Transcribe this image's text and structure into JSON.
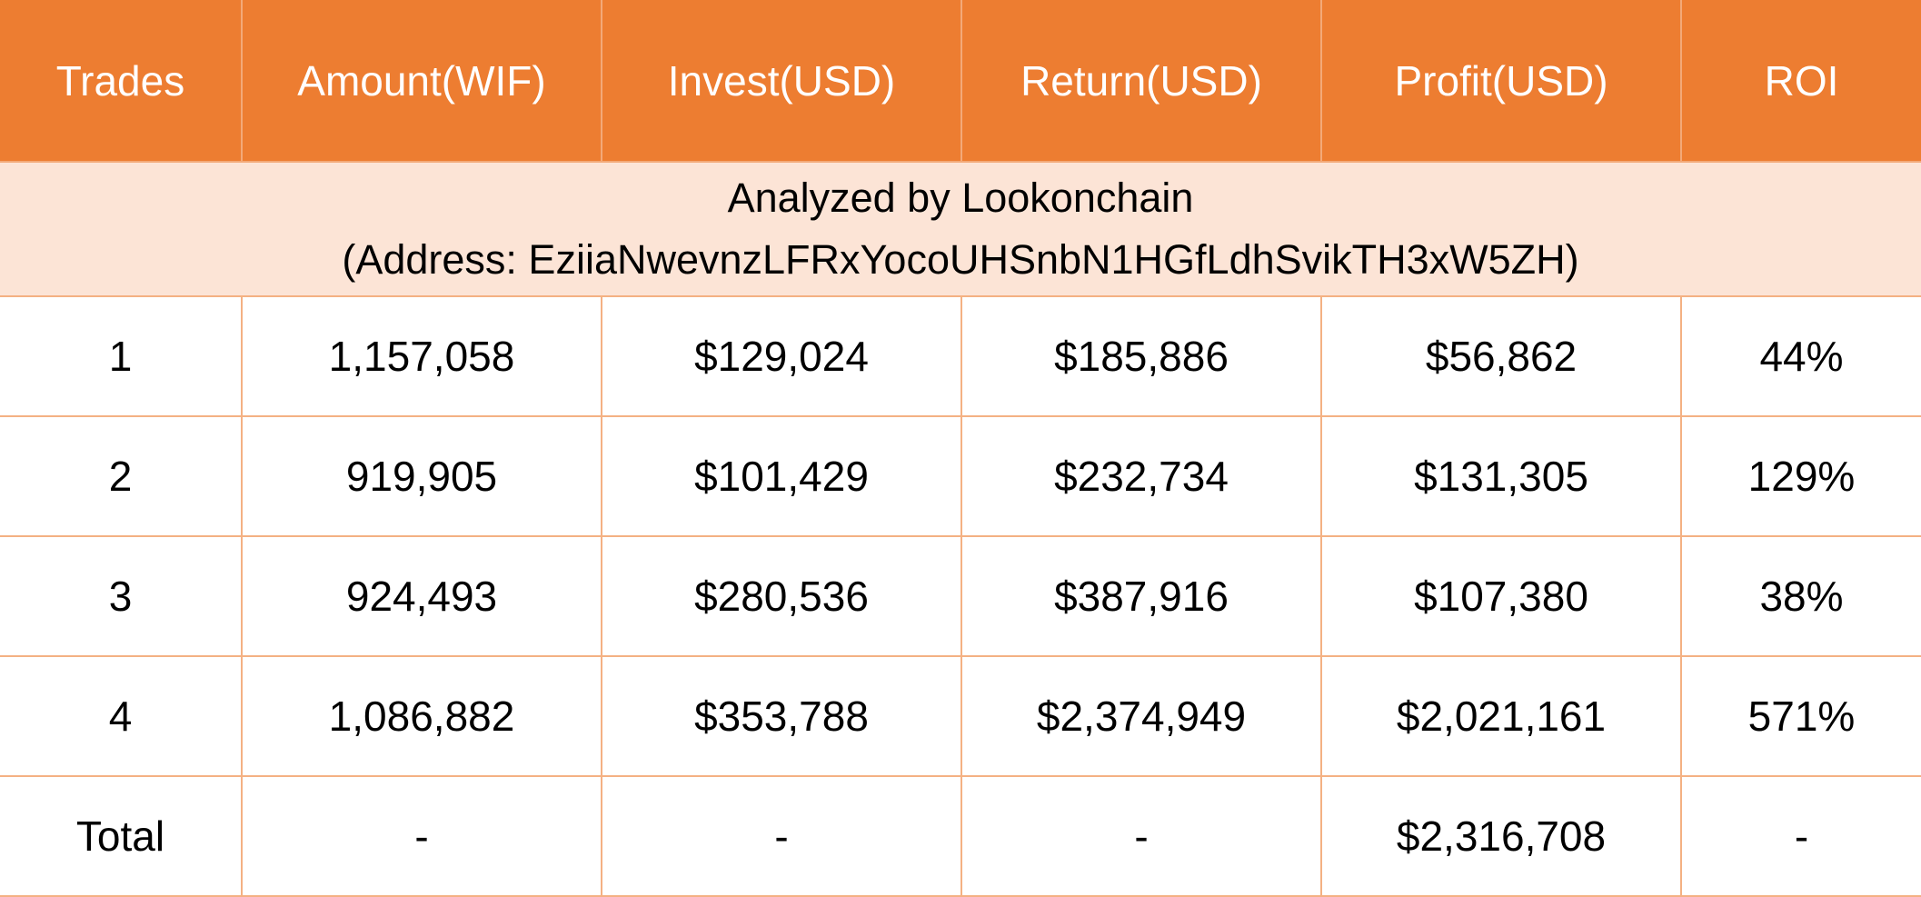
{
  "table": {
    "headers": [
      "Trades",
      "Amount(WIF)",
      "Invest(USD)",
      "Return(USD)",
      "Profit(USD)",
      "ROI"
    ],
    "banner": {
      "line1": "Analyzed by Lookonchain",
      "line2": "(Address: EziiaNwevnzLFRxYocoUHSnbN1HGfLdhSvikTH3xW5ZH)"
    },
    "rows": [
      [
        "1",
        "1,157,058",
        "$129,024",
        "$185,886",
        "$56,862",
        "44%"
      ],
      [
        "2",
        "919,905",
        "$101,429",
        "$232,734",
        "$131,305",
        "129%"
      ],
      [
        "3",
        "924,493",
        "$280,536",
        "$387,916",
        "$107,380",
        "38%"
      ],
      [
        "4",
        "1,086,882",
        "$353,788",
        "$2,374,949",
        "$2,021,161",
        "571%"
      ],
      [
        "Total",
        "-",
        "-",
        "-",
        "$2,316,708",
        "-"
      ]
    ]
  },
  "colors": {
    "header_bg": "#ed7d31",
    "header_text": "#ffffff",
    "banner_bg": "#fce4d6",
    "grid_line": "#f4b183"
  }
}
